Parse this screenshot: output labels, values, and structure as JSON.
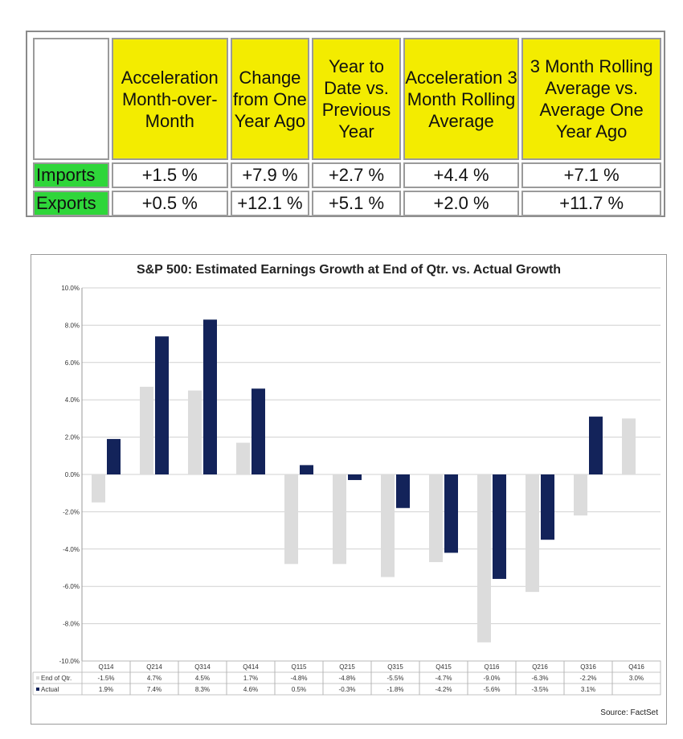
{
  "trade_table": {
    "headers": [
      "Acceleration Month-over-Month",
      "Change from One Year Ago",
      "Year to Date vs. Previous Year",
      "Acceleration 3 Month Rolling Average",
      "3 Month Rolling Average vs. Average One Year Ago"
    ],
    "rows": [
      {
        "label": "Imports",
        "values": [
          "+1.5 %",
          "+7.9 %",
          "+2.7 %",
          "+4.4 %",
          "+7.1 %"
        ]
      },
      {
        "label": "Exports",
        "values": [
          "+0.5 %",
          "+12.1 %",
          "+5.1 %",
          "+2.0 %",
          "+11.7 %"
        ]
      }
    ],
    "colors": {
      "header": "#f3ec00",
      "row_label": "#2fd63a"
    }
  },
  "chart_data": {
    "type": "bar",
    "title": "S&P 500: Estimated Earnings Growth at End of Qtr. vs. Actual Growth",
    "source": "Source: FactSet",
    "categories": [
      "Q114",
      "Q214",
      "Q314",
      "Q414",
      "Q115",
      "Q215",
      "Q315",
      "Q415",
      "Q116",
      "Q216",
      "Q316",
      "Q416"
    ],
    "series": [
      {
        "name": "End of Qtr.",
        "color": "#dcdcdc",
        "values": [
          -1.5,
          4.7,
          4.5,
          1.7,
          -4.8,
          -4.8,
          -5.5,
          -4.7,
          -9.0,
          -6.3,
          -2.2,
          3.0
        ],
        "labels": [
          "-1.5%",
          "4.7%",
          "4.5%",
          "1.7%",
          "-4.8%",
          "-4.8%",
          "-5.5%",
          "-4.7%",
          "-9.0%",
          "-6.3%",
          "-2.2%",
          "3.0%"
        ]
      },
      {
        "name": "Actual",
        "color": "#13235a",
        "values": [
          1.9,
          7.4,
          8.3,
          4.6,
          0.5,
          -0.3,
          -1.8,
          -4.2,
          -5.6,
          -3.5,
          3.1,
          null
        ],
        "labels": [
          "1.9%",
          "7.4%",
          "8.3%",
          "4.6%",
          "0.5%",
          "-0.3%",
          "-1.8%",
          "-4.2%",
          "-5.6%",
          "-3.5%",
          "3.1%",
          ""
        ]
      }
    ],
    "ylim": [
      -10.0,
      10.0
    ],
    "yticks": [
      10.0,
      8.0,
      6.0,
      4.0,
      2.0,
      0.0,
      -2.0,
      -4.0,
      -6.0,
      -8.0,
      -10.0
    ],
    "ytick_labels": [
      "10.0%",
      "8.0%",
      "6.0%",
      "4.0%",
      "2.0%",
      "0.0%",
      "-2.0%",
      "-4.0%",
      "-6.0%",
      "-8.0%",
      "-10.0%"
    ],
    "grid": true,
    "legend": "data-table-below"
  }
}
